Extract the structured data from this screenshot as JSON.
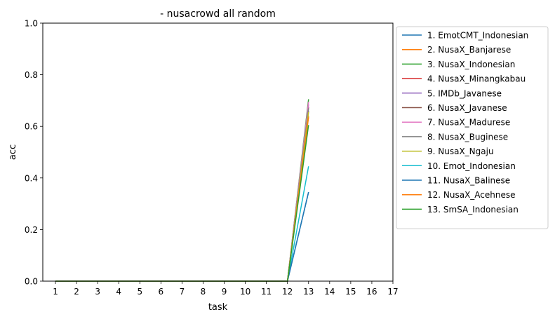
{
  "chart_data": {
    "type": "line",
    "title": "- nusacrowd all random",
    "xlabel": "task",
    "ylabel": "acc",
    "xlim": [
      0.4,
      17
    ],
    "ylim": [
      0,
      1
    ],
    "x_ticks": [
      1,
      2,
      3,
      4,
      5,
      6,
      7,
      8,
      9,
      10,
      11,
      12,
      13,
      14,
      15,
      16,
      17
    ],
    "y_ticks": [
      "0.0",
      "0.2",
      "0.4",
      "0.6",
      "0.8",
      "1.0"
    ],
    "grid": false,
    "legend_position": "outside-right",
    "x": [
      1,
      2,
      3,
      4,
      5,
      6,
      7,
      8,
      9,
      10,
      11,
      12,
      13
    ],
    "series": [
      {
        "name": "1. EmotCMT_Indonesian",
        "color": "#1f77b4",
        "values": [
          0,
          0,
          0,
          0,
          0,
          0,
          0,
          0,
          0,
          0,
          0,
          0,
          0.345
        ]
      },
      {
        "name": "2. NusaX_Banjarese",
        "color": "#ff7f0e",
        "values": [
          0,
          0,
          0,
          0,
          0,
          0,
          0,
          0,
          0,
          0,
          0,
          0,
          0.64
        ]
      },
      {
        "name": "3. NusaX_Indonesian",
        "color": "#2ca02c",
        "values": [
          0,
          0,
          0,
          0,
          0,
          0,
          0,
          0,
          0,
          0,
          0,
          0,
          0.705
        ]
      },
      {
        "name": "4. NusaX_Minangkabau",
        "color": "#d62728",
        "values": [
          0,
          0,
          0,
          0,
          0,
          0,
          0,
          0,
          0,
          0,
          0,
          0,
          0.675
        ]
      },
      {
        "name": "5. IMDb_Javanese",
        "color": "#9467bd",
        "values": [
          0,
          0,
          0,
          0,
          0,
          0,
          0,
          0,
          0,
          0,
          0,
          0,
          0.685
        ]
      },
      {
        "name": "6. NusaX_Javanese",
        "color": "#8c564b",
        "values": [
          0,
          0,
          0,
          0,
          0,
          0,
          0,
          0,
          0,
          0,
          0,
          0,
          0.66
        ]
      },
      {
        "name": "7. NusaX_Madurese",
        "color": "#e377c2",
        "values": [
          0,
          0,
          0,
          0,
          0,
          0,
          0,
          0,
          0,
          0,
          0,
          0,
          0.695
        ]
      },
      {
        "name": "8. NusaX_Buginese",
        "color": "#7f7f7f",
        "values": [
          0,
          0,
          0,
          0,
          0,
          0,
          0,
          0,
          0,
          0,
          0,
          0,
          0.67
        ]
      },
      {
        "name": "9. NusaX_Ngaju",
        "color": "#bcbd22",
        "values": [
          0,
          0,
          0,
          0,
          0,
          0,
          0,
          0,
          0,
          0,
          0,
          0,
          0.655
        ]
      },
      {
        "name": "10. Emot_Indonesian",
        "color": "#17becf",
        "values": [
          0,
          0,
          0,
          0,
          0,
          0,
          0,
          0,
          0,
          0,
          0,
          0,
          0.445
        ]
      },
      {
        "name": "11. NusaX_Balinese",
        "color": "#1f77b4",
        "values": [
          0,
          0,
          0,
          0,
          0,
          0,
          0,
          0,
          0,
          0,
          0,
          0,
          0.345
        ]
      },
      {
        "name": "12. NusaX_Acehnese",
        "color": "#ff7f0e",
        "values": [
          0,
          0,
          0,
          0,
          0,
          0,
          0,
          0,
          0,
          0,
          0,
          0,
          0.635
        ]
      },
      {
        "name": "13. SmSA_Indonesian",
        "color": "#2ca02c",
        "values": [
          0,
          0,
          0,
          0,
          0,
          0,
          0,
          0,
          0,
          0,
          0,
          0,
          0.605
        ]
      }
    ]
  }
}
